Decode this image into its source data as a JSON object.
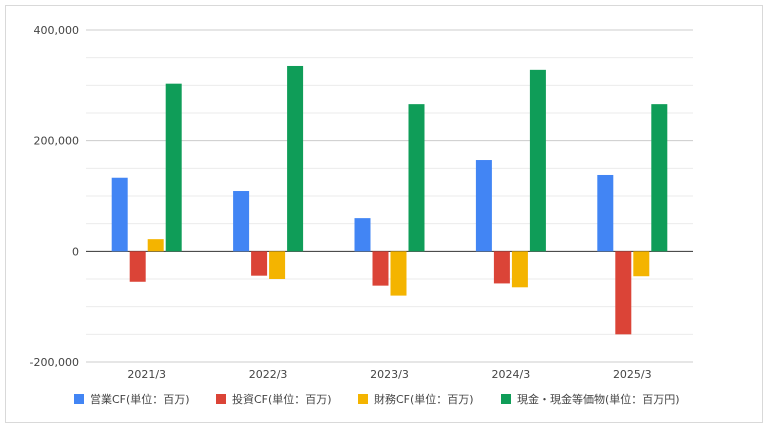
{
  "chart_data": {
    "type": "bar",
    "categories": [
      "2021/3",
      "2022/3",
      "2023/3",
      "2024/3",
      "2025/3"
    ],
    "series": [
      {
        "name": "営業CF(単位：百万)",
        "color": "#4285F4",
        "values": [
          133000,
          109000,
          60000,
          165000,
          138000
        ]
      },
      {
        "name": "投資CF(単位：百万)",
        "color": "#DB4437",
        "values": [
          -55000,
          -44000,
          -62000,
          -58000,
          -150000
        ]
      },
      {
        "name": "財務CF(単位：百万)",
        "color": "#F4B400",
        "values": [
          22000,
          -50000,
          -80000,
          -65000,
          -45000
        ]
      },
      {
        "name": "現金・現金等価物(単位：百万円)",
        "color": "#0F9D58",
        "values": [
          303000,
          335000,
          266000,
          328000,
          266000
        ]
      }
    ],
    "y_ticks": [
      "400,000",
      "200,000",
      "0",
      "-200,000"
    ],
    "ylim": [
      -200000,
      400000
    ],
    "grid": true,
    "legend_position": "bottom",
    "title": "",
    "xlabel": "",
    "ylabel": ""
  }
}
